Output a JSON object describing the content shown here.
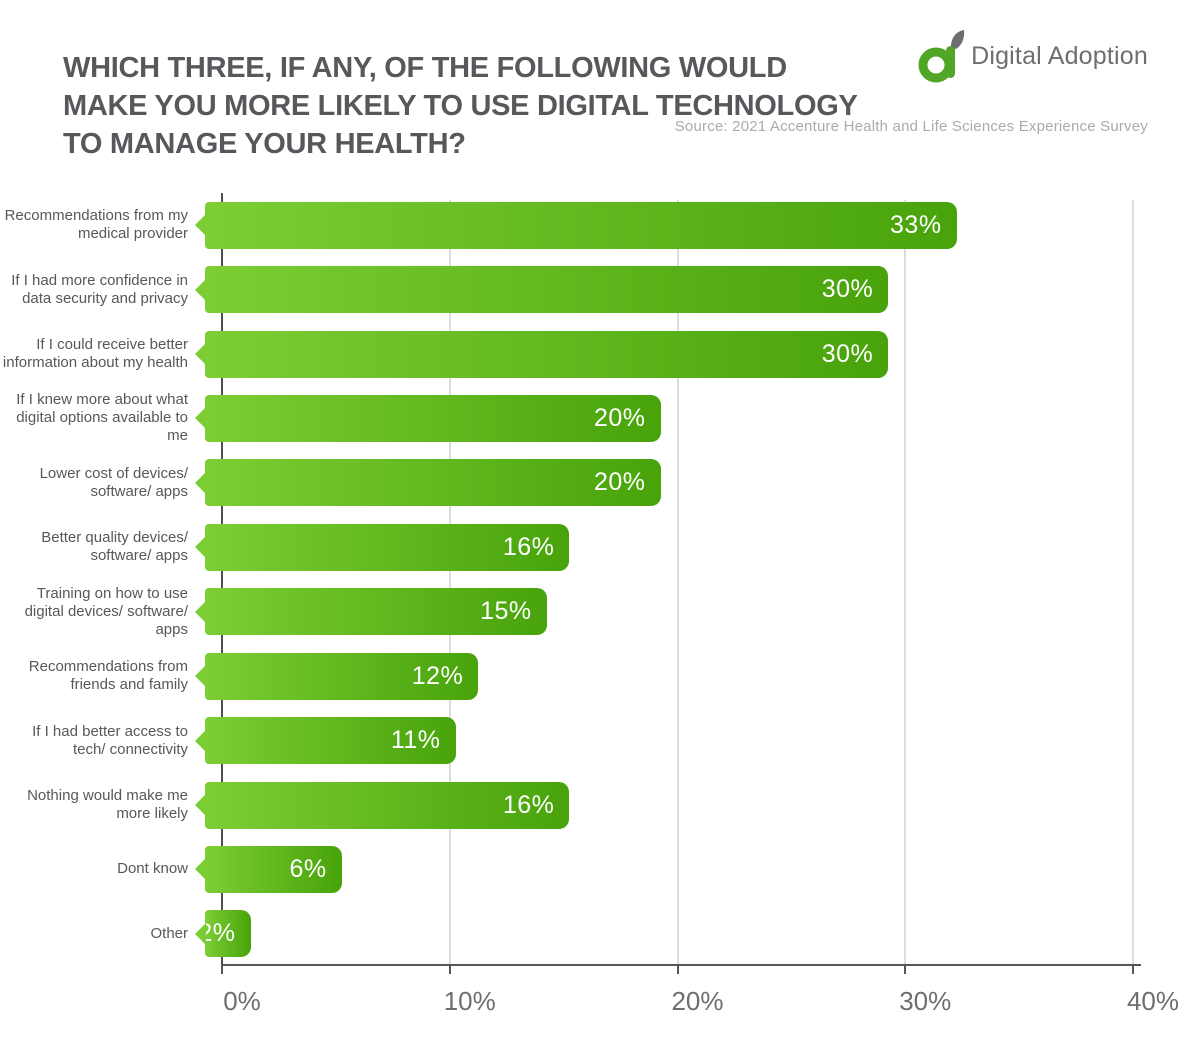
{
  "header": {
    "title_lines": [
      "WHICH THREE, IF ANY, OF THE FOLLOWING WOULD",
      "MAKE YOU MORE LIKELY TO USE DIGITAL TECHNOLOGY",
      "TO MANAGE YOUR HEALTH?"
    ],
    "logo": {
      "brand": "Digital Adoption"
    },
    "source": "Source: 2021 Accenture Health and Life Sciences Experience Survey"
  },
  "chart_data": {
    "type": "bar",
    "orientation": "horizontal",
    "title": "Which three, if any, of the following would make you more likely to use digital technology to manage your health?",
    "categories": [
      "Recommendations from my medical provider",
      "If I had more confidence in data security and privacy",
      "If I could receive better information about my health",
      "If I knew more about what digital options available to me",
      "Lower cost of devices/ software/ apps",
      "Better quality devices/ software/ apps",
      "Training on how to use digital devices/ software/ apps",
      "Recommendations from friends and family",
      "If I had better access to tech/ connectivity",
      "Nothing would make me more likely",
      "Dont know",
      "Other"
    ],
    "values": [
      33,
      30,
      30,
      20,
      20,
      16,
      15,
      12,
      11,
      16,
      6,
      2
    ],
    "value_labels": [
      "33%",
      "30%",
      "30%",
      "20%",
      "20%",
      "16%",
      "15%",
      "12%",
      "11%",
      "16%",
      "6%",
      "2%"
    ],
    "x_ticks": {
      "labels": [
        "0%",
        "10%",
        "20%",
        "30%",
        "40%"
      ],
      "values": [
        0,
        10,
        20,
        30,
        40
      ]
    },
    "xlim": [
      0,
      40
    ],
    "grid": "vertical-only",
    "legend": "none",
    "colors": {
      "bar_gradient_start": "#7CCE34",
      "bar_gradient_end": "#48A30B",
      "gridline": "#DBDCDD",
      "axis": "#55565A",
      "tick_label": "#6D6E71",
      "category_label": "#58585A",
      "title": "#57585B",
      "source": "#A9ABAE",
      "logo_green": "#52A627",
      "logo_gray": "#6D6E71"
    }
  }
}
